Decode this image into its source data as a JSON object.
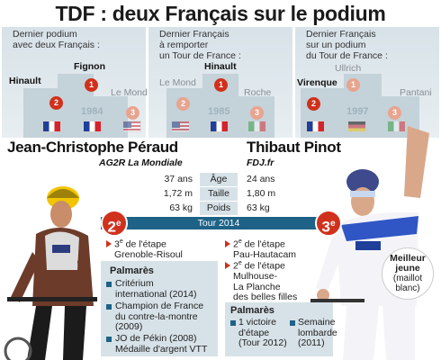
{
  "title": "TDF : deux Français sur le podium",
  "panels": [
    {
      "caption_1": "Dernier podium",
      "caption_2": "avec deux Français :",
      "first": "Fignon",
      "second": "Hinault",
      "third": "Le Mond",
      "year": "1984",
      "n1": "1",
      "n2": "2",
      "n3": "3"
    },
    {
      "caption_1": "Dernier Français",
      "caption_2": "à remporter",
      "caption_3": "un Tour de France :",
      "first": "Hinault",
      "second": "Le Mond",
      "third": "Roche",
      "year": "1985",
      "n1": "1",
      "n2": "2",
      "n3": "3"
    },
    {
      "caption_1": "Dernier Français",
      "caption_2": "sur un podium",
      "caption_3": "du Tour de France :",
      "first": "Ullrich",
      "second": "Virenque",
      "third": "Pantani",
      "year": "1997",
      "n1": "1",
      "n2": "2",
      "n3": "3"
    }
  ],
  "rider_left": {
    "name": "Jean-Christophe Péraud",
    "team": "AG2R La Mondiale",
    "rank": "2",
    "rank_suffix": "e",
    "stage_line1": "3",
    "stage_line1_sup": "e",
    "stage_line1_rest": "de l'étape",
    "stage_line2": "Grenoble-Risoul",
    "palmares_title": "Palmarès",
    "palmares": [
      {
        "l1": "Critérium",
        "l2": "international (2014)"
      },
      {
        "l1": "Champion de France",
        "l2": "du contre-la-montre",
        "l3": "(2009)"
      },
      {
        "l1": "JO de Pékin (2008)",
        "l2": "Médaille d'argent VTT"
      }
    ]
  },
  "rider_right": {
    "name": "Thibaut Pinot",
    "team": "FDJ.fr",
    "rank": "3",
    "rank_suffix": "e",
    "stage_a_1": "2",
    "stage_a_sup": "e",
    "stage_a_rest": "de l'étape",
    "stage_a_2": "Pau-Hautacam",
    "stage_b_1": "2",
    "stage_b_sup": "e",
    "stage_b_rest": "de l'étape",
    "stage_b_2": "Mulhouse-",
    "stage_b_3": "La Planche",
    "stage_b_4": "des belles filles",
    "palmares_title": "Palmarès",
    "palmares_1_l1": "1 victoire",
    "palmares_1_l2": "d'étape",
    "palmares_1_l3": "(Tour 2012)",
    "palmares_2_l1": "Semaine",
    "palmares_2_l2": "lombarde",
    "palmares_2_l3": "(2011)",
    "badge_title_1": "Meilleur",
    "badge_title_2": "jeune",
    "badge_note_1": "(maillot",
    "badge_note_2": "blanc)"
  },
  "stats": [
    {
      "left": "37 ans",
      "label": "Âge",
      "right": "24 ans"
    },
    {
      "left": "1,72 m",
      "label": "Taille",
      "right": "1,80 m"
    },
    {
      "left": "63 kg",
      "label": "Poids",
      "right": "63 kg"
    }
  ],
  "tour_label": "Tour 2014",
  "colors": {
    "accent_red": "#d0311c",
    "accent_blue": "#1e6287",
    "panel": "#d7e2e8"
  }
}
